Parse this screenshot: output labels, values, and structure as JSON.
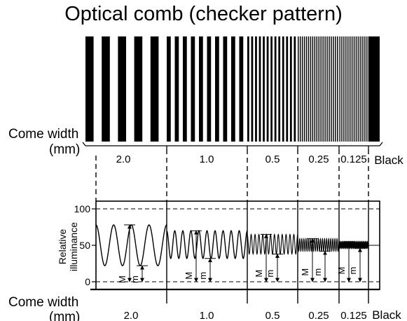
{
  "title": "Optical comb (checker pattern)",
  "comb_label": {
    "line1": "Come width",
    "line2": "(mm)"
  },
  "segments": [
    {
      "label": "2.0"
    },
    {
      "label": "1.0"
    },
    {
      "label": "0.5"
    },
    {
      "label": "0.25"
    },
    {
      "label": "0.125"
    },
    {
      "label": "Black"
    }
  ],
  "graph": {
    "ylabel_line1": "Relative",
    "ylabel_line2": "illuminance",
    "yticks": [
      "100",
      "50",
      "0"
    ],
    "marker_max": "M",
    "marker_min": "m",
    "bottom_label": {
      "line1": "Come width",
      "line2": "(mm)"
    },
    "series": [
      {
        "segment": "2.0",
        "max": 78,
        "min": 22
      },
      {
        "segment": "1.0",
        "max": 70,
        "min": 32
      },
      {
        "segment": "0.5",
        "max": 65,
        "min": 38
      },
      {
        "segment": "0.25",
        "max": 59,
        "min": 42
      },
      {
        "segment": "0.125",
        "max": 55,
        "min": 46
      }
    ]
  }
}
